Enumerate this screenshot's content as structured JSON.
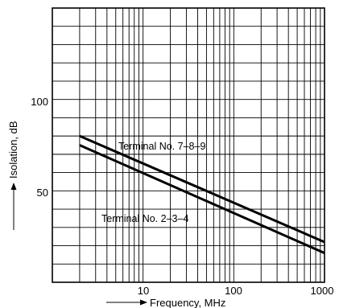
{
  "chart_data": {
    "type": "line",
    "x_scale": "log",
    "xlim": [
      1,
      1000
    ],
    "ylim": [
      0,
      150
    ],
    "grid": true,
    "xlabel": "Frequency, MHz",
    "ylabel": "Isolation, dB",
    "x_tick_labels": [
      "10",
      "100",
      "1000"
    ],
    "x_tick_values": [
      10,
      100,
      1000
    ],
    "y_tick_labels": [
      "100",
      "50"
    ],
    "y_tick_values": [
      100,
      50
    ],
    "series": [
      {
        "name": "Terminal No. 7–8–9",
        "x": [
          2,
          1000
        ],
        "y": [
          80,
          22
        ]
      },
      {
        "name": "Terminal No. 2–3–4",
        "x": [
          2,
          1000
        ],
        "y": [
          75,
          16
        ]
      }
    ]
  }
}
